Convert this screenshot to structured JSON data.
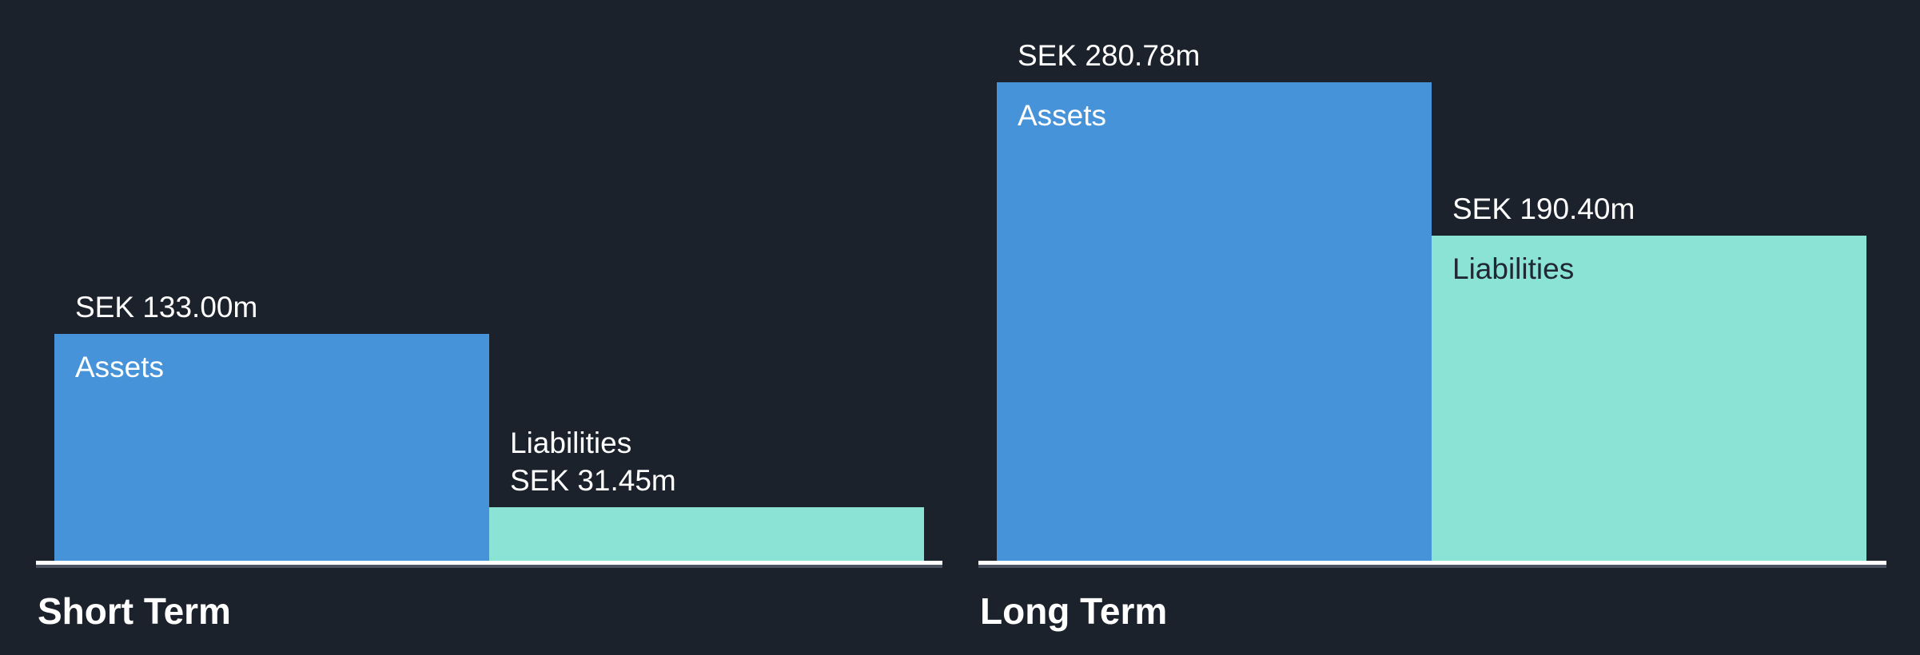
{
  "colors": {
    "background": "#1b222c",
    "assets": "#4793d9",
    "liabilities": "#8be3d5",
    "baseline": "#ffffff",
    "baseline-shadow": "#4a5160",
    "text-light": "#ffffff",
    "text-dark": "#202834"
  },
  "chart_data": [
    {
      "type": "bar",
      "title": "Short Term",
      "categories": [
        "Assets",
        "Liabilities"
      ],
      "values": [
        133.0,
        31.45
      ],
      "value_labels": [
        "SEK 133.00m",
        "SEK 31.45m"
      ],
      "unit": "SEK millions",
      "series_colors": [
        "#4793d9",
        "#8be3d5"
      ],
      "legend": "none",
      "axes": "hidden; bars sit on a shared white baseline, values labeled directly above bars",
      "ylim": [
        0,
        280.78
      ]
    },
    {
      "type": "bar",
      "title": "Long Term",
      "categories": [
        "Assets",
        "Liabilities"
      ],
      "values": [
        280.78,
        190.4
      ],
      "value_labels": [
        "SEK 280.78m",
        "SEK 190.40m"
      ],
      "unit": "SEK millions",
      "series_colors": [
        "#4793d9",
        "#8be3d5"
      ],
      "legend": "none",
      "axes": "hidden; bars sit on a shared white baseline, values labeled directly above bars",
      "ylim": [
        0,
        280.78
      ]
    }
  ]
}
